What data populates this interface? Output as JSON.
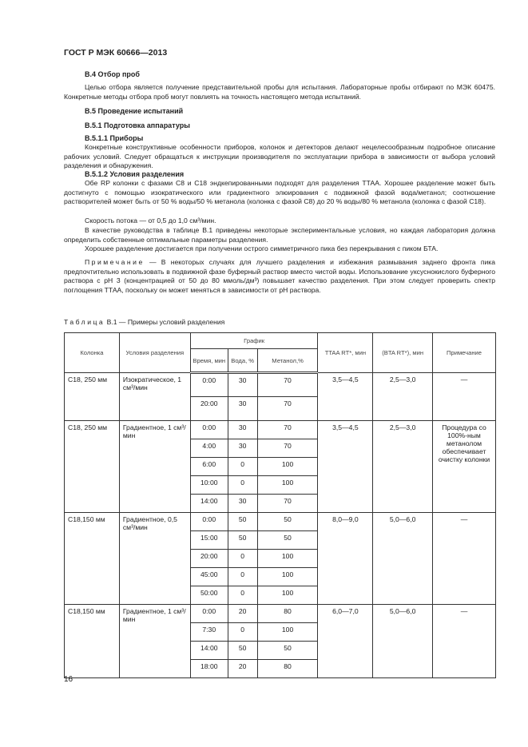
{
  "header": "ГОСТ Р МЭК 60666—2013",
  "s_b4": "B.4 Отбор проб",
  "p_b4": "Целью отбора является получение представительной пробы для испытания. Лабораторные пробы отбирают по МЭК 60475. Конкретные методы отбора проб могут повлиять на точность настоящего метода испытаний.",
  "s_b5": "B.5 Проведение испытаний",
  "s_b51": "B.5.1 Подготовка аппаратуры",
  "s_b511": "B.5.1.1 Приборы",
  "p_b511": "Конкретные конструктивные особенности приборов, колонок и детекторов делают нецелесообразным подробное описание рабочих условий. Следует обращаться к инструкции производителя по эксплуатации прибора в зависимости от выбора условий разделения и обнаружения.",
  "s_b512": "B.5.1.2 Условия разделения",
  "p_b512_1": "Обе RP колонки с фазами C8 и C18 эндкепированными подходят для разделения ТТАА. Хорошее разделение может быть достигнуто с помощью изократического или градиентного элюирования с подвижной фазой вода/метанол; соотношение растворителей может быть от 50 % воды/50 % метанола (колонка с фазой C8) до 20 % воды/80 % метанола (колонка с фазой C18).",
  "p_flow": "Скорость потока — от 0,5 до 1,0 см³/мин.",
  "p_guide": "В качестве руководства в таблице B.1 приведены некоторые экспериментальные условия, но каждая лаборатория должна определить собственные оптимальные параметры разделения.",
  "p_good": "Хорошее разделение достигается при получении острого симметричного пика без перекрывания с пиком БТА.",
  "note_label": "Примечание",
  "note_text": " — В некоторых случаях для лучшего разделения и избежания размывания заднего фронта пика предпочтительно использовать в подвижной фазе буферный раствор вместо чистой воды. Использование уксуснокислого буферного раствора с pH 3 (концентрацией от 50 до 80 ммоль/дм³) повышает качество разделения. При этом следует проверить спектр поглощения ТТАА, поскольку он может меняться в зависимости от pH раствора.",
  "table_label": "Таблица",
  "table_title": " B.1 — Примеры условий разделения",
  "th": {
    "col": "Колонка",
    "cond": "Условия разделения",
    "sched": "График",
    "time": "Время, мин",
    "water": "Вода, %",
    "meth": "Метанол,%",
    "ttaa": "TTAA RT*, мин",
    "bta": "(BTA RT*), мин",
    "note": "Примечание"
  },
  "groups": [
    {
      "col": "C18, 250 мм",
      "cond": "Изократическое, 1 см³/мин",
      "ttaa": "3,5—4,5",
      "bta": "2,5—3,0",
      "note": "—",
      "rows": [
        [
          "0:00",
          "30",
          "70"
        ],
        [
          "20:00",
          "30",
          "70"
        ]
      ]
    },
    {
      "col": "C18, 250 мм",
      "cond": "Градиентное, 1 см³/мин",
      "ttaa": "3,5—4,5",
      "bta": "2,5—3,0",
      "note": "Процедура со 100%-ным метанолом обеспечивает очистку колонки",
      "rows": [
        [
          "0:00",
          "30",
          "70"
        ],
        [
          "4:00",
          "30",
          "70"
        ],
        [
          "6:00",
          "0",
          "100"
        ],
        [
          "10:00",
          "0",
          "100"
        ],
        [
          "14:00",
          "30",
          "70"
        ]
      ]
    },
    {
      "col": "C18,150 мм",
      "cond": "Градиентное, 0,5 см³/мин",
      "ttaa": "8,0—9,0",
      "bta": "5,0—6,0",
      "note": "—",
      "rows": [
        [
          "0:00",
          "50",
          "50"
        ],
        [
          "15:00",
          "50",
          "50"
        ],
        [
          "20:00",
          "0",
          "100"
        ],
        [
          "45:00",
          "0",
          "100"
        ],
        [
          "50:00",
          "0",
          "100"
        ]
      ]
    },
    {
      "col": "C18,150 мм",
      "cond": "Градиентное, 1 см³/мин",
      "ttaa": "6,0—7,0",
      "bta": "5,0—6,0",
      "note": "—",
      "rows": [
        [
          "0:00",
          "20",
          "80"
        ],
        [
          "7:30",
          "0",
          "100"
        ],
        [
          "14:00",
          "50",
          "50"
        ],
        [
          "18:00",
          "20",
          "80"
        ]
      ]
    }
  ],
  "page_number": "16"
}
